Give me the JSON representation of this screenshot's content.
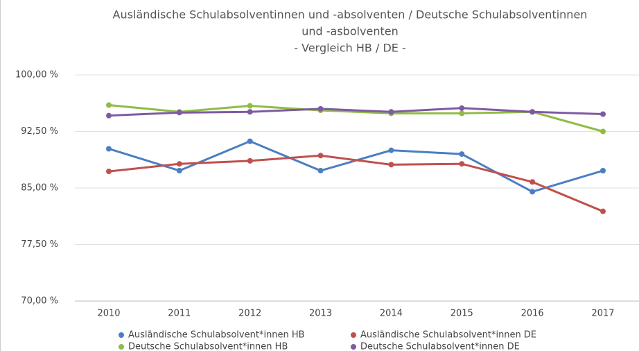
{
  "chart_data": {
    "type": "line",
    "title": [
      "Ausländische Schulabsolventinnen und -absolventen / Deutsche Schulabsolventinnen",
      "und -asbolventen",
      "- Vergleich HB / DE -"
    ],
    "categories": [
      "2010",
      "2011",
      "2012",
      "2013",
      "2014",
      "2015",
      "2016",
      "2017"
    ],
    "series": [
      {
        "name": "Ausländische Schulabsolvent*innen HB",
        "color": "#4a7fc1",
        "values": [
          90.2,
          87.3,
          91.2,
          87.3,
          90.0,
          89.5,
          84.5,
          87.3
        ]
      },
      {
        "name": "Ausländische Schulabsolvent*innen DE",
        "color": "#c0504d",
        "values": [
          87.2,
          88.2,
          88.6,
          89.3,
          88.1,
          88.2,
          85.8,
          81.9
        ]
      },
      {
        "name": "Deutsche Schulabsolvent*innen HB",
        "color": "#8fbc45",
        "values": [
          96.0,
          95.1,
          95.9,
          95.3,
          94.9,
          94.9,
          95.1,
          92.5
        ]
      },
      {
        "name": "Deutsche Schulabsolvent*innen DE",
        "color": "#7f5aa2",
        "values": [
          94.6,
          95.0,
          95.1,
          95.5,
          95.1,
          95.6,
          95.1,
          94.8
        ]
      }
    ],
    "ylim": [
      70,
      100
    ],
    "yticks": [
      {
        "value": 70,
        "label": "70,00 %"
      },
      {
        "value": 77.5,
        "label": "77,50 %"
      },
      {
        "value": 85,
        "label": "85,00 %"
      },
      {
        "value": 92.5,
        "label": "92,50 %"
      },
      {
        "value": 100,
        "label": "100,00 %"
      }
    ],
    "grid": true,
    "legend": "bottom"
  }
}
